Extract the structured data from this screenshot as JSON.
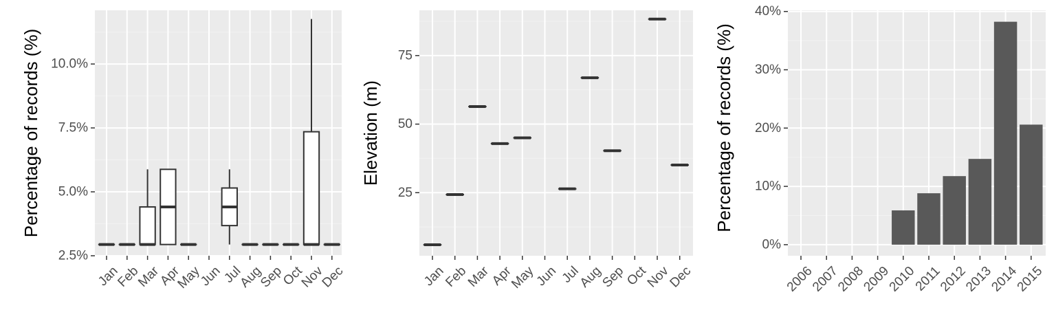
{
  "colors": {
    "panel_background": "#ebebeb",
    "grid_major": "#ffffff",
    "grid_minor": "#f2f2f2",
    "box_stroke": "#333333",
    "box_fill": "#ffffff",
    "bar_fill": "#595959",
    "tick_label": "#4d4d4d",
    "axis_title": "#000000"
  },
  "chart_data": [
    {
      "type": "box",
      "ylabel": "Percentage of records (%)",
      "xlabel": "",
      "y_tick_labels": [
        "2.5%",
        "5.0%",
        "7.5%",
        "10.0%"
      ],
      "y_ticks": [
        2.5,
        5.0,
        7.5,
        10.0
      ],
      "ylim": [
        2.5,
        12.1
      ],
      "categories": [
        "Jan",
        "Feb",
        "Mar",
        "Apr",
        "May",
        "Jun",
        "Jul",
        "Aug",
        "Sep",
        "Oct",
        "Nov",
        "Dec"
      ],
      "boxes": [
        {
          "month": "Jan",
          "min": 2.94,
          "q1": 2.94,
          "median": 2.94,
          "q3": 2.94,
          "max": 2.94
        },
        {
          "month": "Feb",
          "min": 2.94,
          "q1": 2.94,
          "median": 2.94,
          "q3": 2.94,
          "max": 2.94
        },
        {
          "month": "Mar",
          "min": 2.94,
          "q1": 2.94,
          "median": 2.94,
          "q3": 4.41,
          "max": 5.88
        },
        {
          "month": "Apr",
          "min": 2.94,
          "q1": 2.94,
          "median": 4.41,
          "q3": 5.88,
          "max": 5.88
        },
        {
          "month": "May",
          "min": 2.94,
          "q1": 2.94,
          "median": 2.94,
          "q3": 2.94,
          "max": 2.94
        },
        {
          "month": "Jun",
          "min": null,
          "q1": null,
          "median": null,
          "q3": null,
          "max": null
        },
        {
          "month": "Jul",
          "min": 2.94,
          "q1": 3.68,
          "median": 4.41,
          "q3": 5.15,
          "max": 5.88
        },
        {
          "month": "Aug",
          "min": 2.94,
          "q1": 2.94,
          "median": 2.94,
          "q3": 2.94,
          "max": 2.94
        },
        {
          "month": "Sep",
          "min": 2.94,
          "q1": 2.94,
          "median": 2.94,
          "q3": 2.94,
          "max": 2.94
        },
        {
          "month": "Oct",
          "min": 2.94,
          "q1": 2.94,
          "median": 2.94,
          "q3": 2.94,
          "max": 2.94
        },
        {
          "month": "Nov",
          "min": 2.94,
          "q1": 2.94,
          "median": 2.94,
          "q3": 7.35,
          "max": 11.76
        },
        {
          "month": "Dec",
          "min": 2.94,
          "q1": 2.94,
          "median": 2.94,
          "q3": 2.94,
          "max": 2.94
        }
      ],
      "grid": true
    },
    {
      "type": "box",
      "ylabel": "Elevation (m)",
      "xlabel": "",
      "y_tick_labels": [
        "25",
        "50",
        "75"
      ],
      "y_ticks": [
        25,
        50,
        75
      ],
      "ylim": [
        2,
        91.5
      ],
      "categories": [
        "Jan",
        "Feb",
        "Mar",
        "Apr",
        "May",
        "Jun",
        "Jul",
        "Aug",
        "Sep",
        "Oct",
        "Nov",
        "Dec"
      ],
      "boxes": [
        {
          "month": "Jan",
          "min": 6.0,
          "q1": 6.0,
          "median": 6.0,
          "q3": 6.0,
          "max": 6.0
        },
        {
          "month": "Feb",
          "min": 24.3,
          "q1": 24.3,
          "median": 24.3,
          "q3": 24.3,
          "max": 24.3
        },
        {
          "month": "Mar",
          "min": 56.4,
          "q1": 56.4,
          "median": 56.4,
          "q3": 56.4,
          "max": 56.4
        },
        {
          "month": "Apr",
          "min": 42.9,
          "q1": 42.9,
          "median": 42.9,
          "q3": 42.9,
          "max": 42.9
        },
        {
          "month": "May",
          "min": 45.0,
          "q1": 45.0,
          "median": 45.0,
          "q3": 45.0,
          "max": 45.0
        },
        {
          "month": "Jun",
          "min": null,
          "q1": null,
          "median": null,
          "q3": null,
          "max": null
        },
        {
          "month": "Jul",
          "min": 26.4,
          "q1": 26.4,
          "median": 26.4,
          "q3": 26.4,
          "max": 26.4
        },
        {
          "month": "Aug",
          "min": 66.9,
          "q1": 66.9,
          "median": 66.9,
          "q3": 66.9,
          "max": 66.9
        },
        {
          "month": "Sep",
          "min": 40.3,
          "q1": 40.3,
          "median": 40.3,
          "q3": 40.3,
          "max": 40.3
        },
        {
          "month": "Oct",
          "min": null,
          "q1": null,
          "median": null,
          "q3": null,
          "max": null
        },
        {
          "month": "Nov",
          "min": 88.3,
          "q1": 88.3,
          "median": 88.3,
          "q3": 88.3,
          "max": 88.3
        },
        {
          "month": "Dec",
          "min": 35.1,
          "q1": 35.1,
          "median": 35.1,
          "q3": 35.1,
          "max": 35.1
        }
      ],
      "grid": true
    },
    {
      "type": "bar",
      "ylabel": "Percentage of records (%)",
      "xlabel": "",
      "y_tick_labels": [
        "0%",
        "10%",
        "20%",
        "30%",
        "40%"
      ],
      "y_ticks": [
        0,
        10,
        20,
        30,
        40
      ],
      "ylim": [
        -1.9,
        40.2
      ],
      "categories": [
        "2006",
        "2007",
        "2008",
        "2009",
        "2010",
        "2011",
        "2012",
        "2013",
        "2014",
        "2015"
      ],
      "values": [
        0,
        0,
        0,
        0,
        5.88,
        8.82,
        11.76,
        14.71,
        38.24,
        20.59
      ],
      "grid": true
    }
  ]
}
